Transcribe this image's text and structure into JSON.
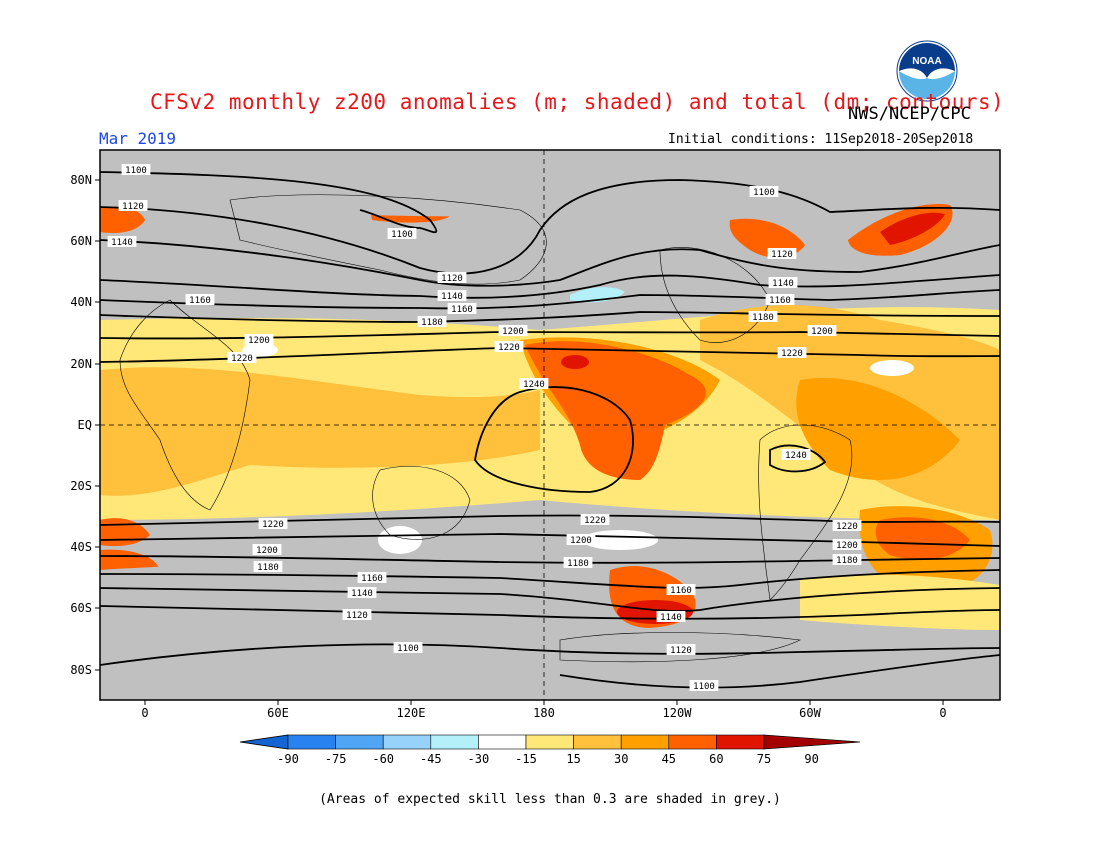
{
  "header": {
    "title": "CFSv2 monthly z200 anomalies (m; shaded) and total (dm; contours)",
    "agency": "NWS/NCEP/CPC",
    "month": "Mar 2019",
    "initial_conditions": "Initial conditions: 11Sep2018-20Sep2018",
    "logo_text": "NOAA"
  },
  "map": {
    "lat_labels": [
      "80N",
      "60N",
      "40N",
      "20N",
      "EQ",
      "20S",
      "40S",
      "60S",
      "80S"
    ],
    "lon_labels": [
      "0",
      "60E",
      "120E",
      "180",
      "120W",
      "60W",
      "0"
    ],
    "contour_labels": [
      "1100",
      "1120",
      "1140",
      "1160",
      "1180",
      "1200",
      "1220",
      "1240",
      "1100",
      "1100",
      "1120",
      "1140",
      "1160",
      "1180",
      "1200",
      "1220",
      "1100",
      "1120",
      "1140",
      "1160",
      "1180",
      "1200",
      "1220",
      "1240",
      "1220",
      "1200",
      "1180",
      "1160",
      "1140",
      "1120",
      "1100",
      "1220",
      "1200",
      "1180",
      "1160",
      "1140",
      "1120",
      "1100",
      "1220",
      "1200",
      "1180"
    ]
  },
  "colorbar": {
    "ticks": [
      "-90",
      "-75",
      "-60",
      "-45",
      "-30",
      "-15",
      "15",
      "30",
      "45",
      "60",
      "75",
      "90"
    ],
    "colors": [
      "#1464d2",
      "#2882f0",
      "#50a5f5",
      "#96d2fa",
      "#b4f0fa",
      "#ffffff",
      "#ffe878",
      "#ffc03c",
      "#ffa000",
      "#ff6000",
      "#e11400",
      "#a50000"
    ],
    "footnote": "(Areas of expected skill less than 0.3 are shaded in grey.)"
  }
}
